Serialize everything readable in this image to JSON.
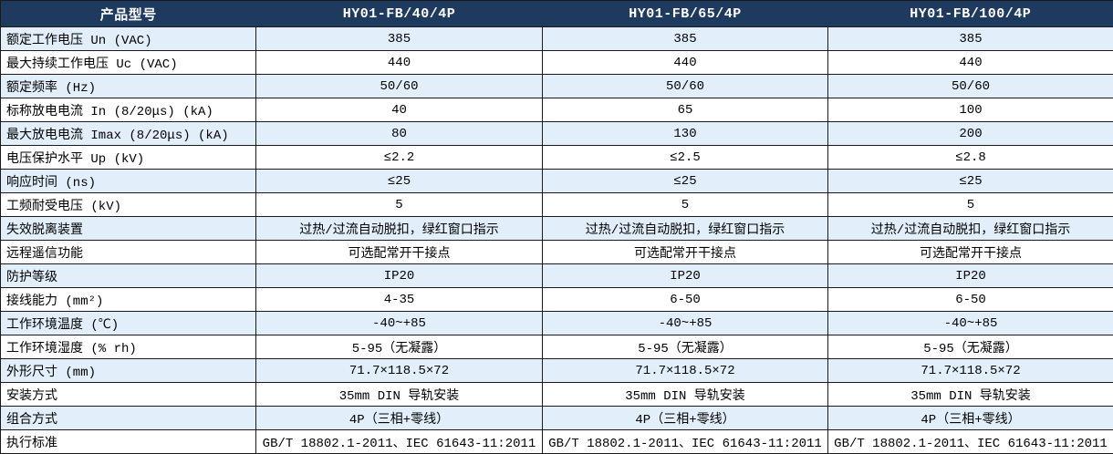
{
  "colors": {
    "header_bg": "#1F3A5F",
    "row_alt_bg": "#E2EFFA",
    "row_bg": "#FFFFFF",
    "border": "#1A1A1A",
    "header_text": "#FFFFFF",
    "body_text": "#000000"
  },
  "table": {
    "header": [
      "产品型号",
      "HY01-FB/40/4P",
      "HY01-FB/65/4P",
      "HY01-FB/100/4P"
    ],
    "rows": [
      {
        "label": "额定工作电压 Un (VAC)",
        "values": [
          "385",
          "385",
          "385"
        ]
      },
      {
        "label": "最大持续工作电压 Uc (VAC)",
        "values": [
          "440",
          "440",
          "440"
        ]
      },
      {
        "label": "额定频率 (Hz)",
        "values": [
          "50/60",
          "50/60",
          "50/60"
        ]
      },
      {
        "label": "标称放电电流 In (8/20μs) (kA)",
        "values": [
          "40",
          "65",
          "100"
        ]
      },
      {
        "label": "最大放电电流 Imax (8/20μs) (kA)",
        "values": [
          "80",
          "130",
          "200"
        ]
      },
      {
        "label": "电压保护水平 Up (kV)",
        "values": [
          "≤2.2",
          "≤2.5",
          "≤2.8"
        ]
      },
      {
        "label": "响应时间 (ns)",
        "values": [
          "≤25",
          "≤25",
          "≤25"
        ]
      },
      {
        "label": "工频耐受电压 (kV)",
        "values": [
          "5",
          "5",
          "5"
        ]
      },
      {
        "label": "失效脱离装置",
        "values": [
          "过热/过流自动脱扣，绿红窗口指示",
          "过热/过流自动脱扣，绿红窗口指示",
          "过热/过流自动脱扣，绿红窗口指示"
        ]
      },
      {
        "label": "远程遥信功能",
        "values": [
          "可选配常开干接点",
          "可选配常开干接点",
          "可选配常开干接点"
        ]
      },
      {
        "label": "防护等级",
        "values": [
          "IP20",
          "IP20",
          "IP20"
        ]
      },
      {
        "label": "接线能力 (mm²)",
        "values": [
          "4-35",
          "6-50",
          "6-50"
        ]
      },
      {
        "label": "工作环境温度 (℃)",
        "values": [
          "-40~+85",
          "-40~+85",
          "-40~+85"
        ]
      },
      {
        "label": "工作环境湿度 (% rh)",
        "values": [
          "5-95（无凝露）",
          "5-95（无凝露）",
          "5-95（无凝露）"
        ]
      },
      {
        "label": "外形尺寸 (mm)",
        "values": [
          "71.7×118.5×72",
          "71.7×118.5×72",
          "71.7×118.5×72"
        ]
      },
      {
        "label": "安装方式",
        "values": [
          "35mm DIN 导轨安装",
          "35mm DIN 导轨安装",
          "35mm DIN 导轨安装"
        ]
      },
      {
        "label": "组合方式",
        "values": [
          "4P（三相+零线）",
          "4P（三相+零线）",
          "4P（三相+零线）"
        ]
      },
      {
        "label": "执行标准",
        "values": [
          "GB/T 18802.1-2011、IEC 61643-11:2011",
          "GB/T 18802.1-2011、IEC 61643-11:2011",
          "GB/T 18802.1-2011、IEC 61643-11:2011"
        ]
      }
    ]
  }
}
